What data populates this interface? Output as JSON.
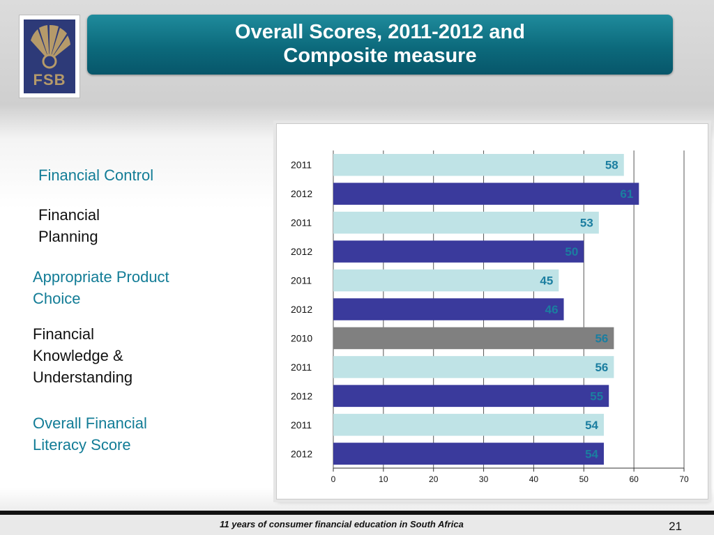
{
  "logo": {
    "text": "FSB"
  },
  "title": "Overall Scores, 2011-2012  and Composite measure",
  "categories": [
    {
      "label": "Financial Control"
    },
    {
      "label": "Financial Planning"
    },
    {
      "label": "Appropriate Product Choice"
    },
    {
      "label": "Financial Knowledge & Understanding"
    },
    {
      "label": "Overall Financial Literacy Score"
    }
  ],
  "chart_data": {
    "type": "bar",
    "orientation": "horizontal",
    "categories": [
      "2011",
      "2012",
      "2011",
      "2012",
      "2011",
      "2012",
      "2010",
      "2011",
      "2012",
      "2011",
      "2012"
    ],
    "values": [
      58,
      61,
      53,
      50,
      45,
      46,
      56,
      56,
      55,
      54,
      54
    ],
    "bar_colors": [
      "#bfe3e6",
      "#3a3a9c",
      "#bfe3e6",
      "#3a3a9c",
      "#bfe3e6",
      "#3a3a9c",
      "#808080",
      "#bfe3e6",
      "#3a3a9c",
      "#bfe3e6",
      "#3a3a9c"
    ],
    "label_color": "#1b7ea0",
    "xlim": [
      0,
      70
    ],
    "xticks": [
      0,
      10,
      20,
      30,
      40,
      50,
      60,
      70
    ],
    "grid": true
  },
  "footer": {
    "text": "11 years of consumer financial education in South Africa",
    "page": "21"
  }
}
